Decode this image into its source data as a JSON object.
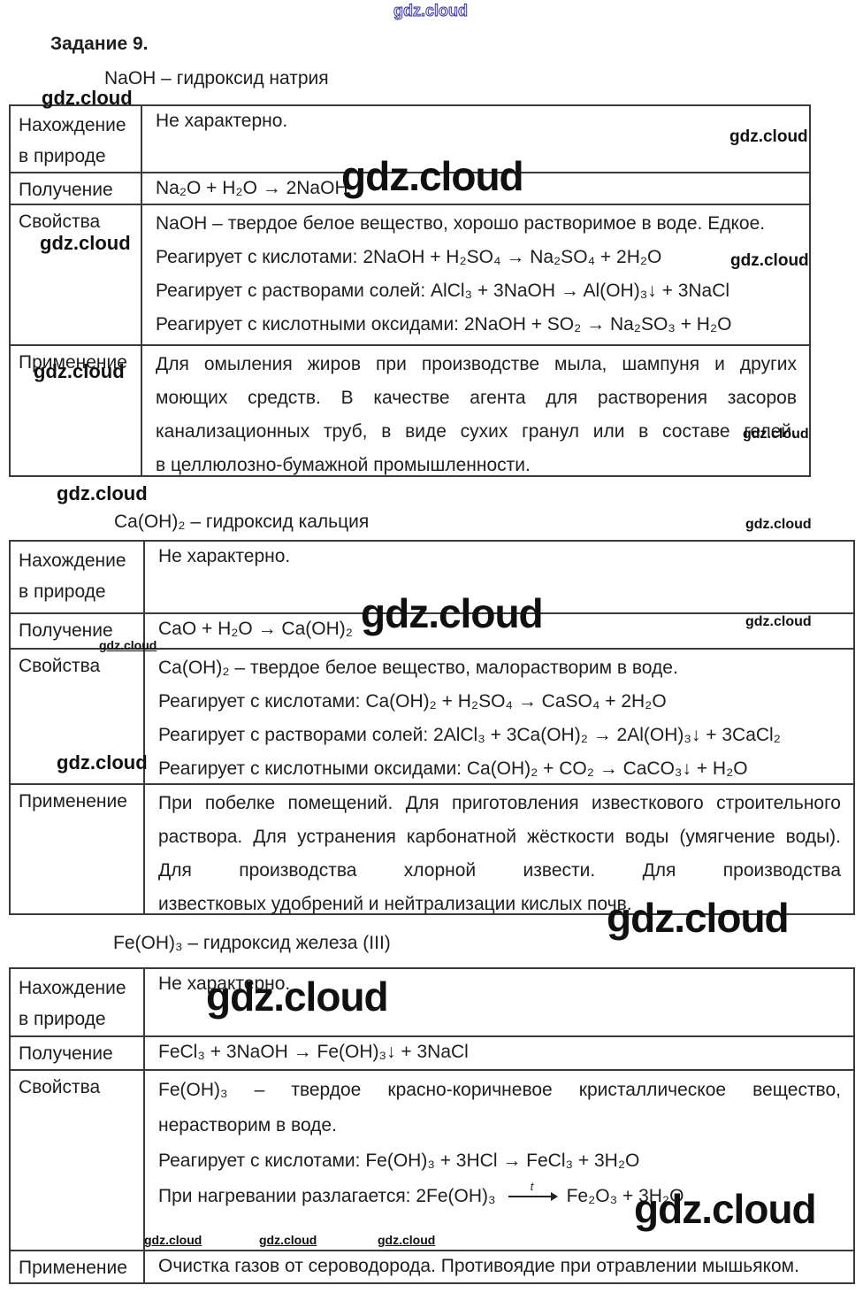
{
  "page": {
    "task_title": "Задание 9."
  },
  "watermark": {
    "text": "gdz.cloud",
    "outline_color": "#2929a3"
  },
  "sections": [
    {
      "heading": "NaOH – гидроксид натрия",
      "rows": [
        {
          "label": [
            "Нахождение",
            "в природе"
          ],
          "lines": [
            "Не характерно."
          ]
        },
        {
          "label": [
            "Получение"
          ],
          "lines": [
            "Na₂O + H₂O → 2NaOH"
          ]
        },
        {
          "label": [
            "Свойства"
          ],
          "lines": [
            "NaOH – твердое белое вещество, хорошо растворимое в воде. Едкое.",
            "Реагирует с кислотами: 2NaOH + H₂SO₄ → Na₂SO₄ + 2H₂O",
            "Реагирует с растворами солей: AlCl₃ + 3NaOH → Al(OH)₃↓ + 3NaCl",
            "Реагирует с кислотными оксидами: 2NaOH + SO₂ → Na₂SO₃ + H₂O"
          ]
        },
        {
          "label": [
            "Применение"
          ],
          "lines": [
            "Для омыления жиров при производстве мыла, шампуня и других",
            "моющих средств. В качестве агента для растворения засоров",
            "канализационных труб, в виде сухих гранул или в составе гелей.",
            "в целлюлозно-бумажной промышленности."
          ]
        }
      ]
    },
    {
      "heading": "Ca(OH)₂ – гидроксид кальция",
      "rows": [
        {
          "label": [
            "Нахождение",
            "в природе"
          ],
          "lines": [
            "Не характерно."
          ]
        },
        {
          "label": [
            "Получение"
          ],
          "lines": [
            "CaO + H₂O → Ca(OH)₂"
          ]
        },
        {
          "label": [
            "Свойства"
          ],
          "lines": [
            "Ca(OH)₂ – твердое белое вещество, малорастворим в воде.",
            "Реагирует с кислотами: Ca(OH)₂ + H₂SO₄ → CaSO₄ + 2H₂O",
            "Реагирует с растворами солей: 2AlCl₃ + 3Ca(OH)₂ → 2Al(OH)₃↓ + 3CaCl₂",
            "Реагирует с кислотными оксидами: Ca(OH)₂ + CO₂ → CaCO₃↓ + H₂O"
          ]
        },
        {
          "label": [
            "Применение"
          ],
          "lines": [
            "При побелке помещений. Для приготовления известкового строительного",
            "раствора. Для устранения карбонатной жёсткости воды (умягчение воды).",
            "Для производства хлорной извести. Для производства",
            "известковых удобрений и нейтрализации кислых почв."
          ]
        }
      ]
    },
    {
      "heading": "Fe(OH)₃ – гидроксид железа (III)",
      "rows": [
        {
          "label": [
            "Нахождение",
            "в природе"
          ],
          "lines": [
            "Не характерно."
          ]
        },
        {
          "label": [
            "Получение"
          ],
          "lines": [
            "FeCl₃ + 3NaOH → Fe(OH)₃↓ + 3NaCl"
          ]
        },
        {
          "label": [
            "Свойства"
          ],
          "lines": [
            "Fe(OH)₃ – твердое красно-коричневое кристаллическое вещество,",
            "нерастворим в воде.",
            "Реагирует с кислотами: Fe(OH)₃ + 3HCl → FeCl₃ + 3H₂O"
          ],
          "arrow": {
            "pre": "При нагревании разлагается: 2Fe(OH)₃",
            "label": "t",
            "post": "Fe₂O₃ + 3H₂O"
          }
        },
        {
          "label": [
            "Применение"
          ],
          "lines": [
            "Очистка газов от сероводорода. Противоядие при отравлении мышьяком."
          ]
        }
      ]
    }
  ]
}
